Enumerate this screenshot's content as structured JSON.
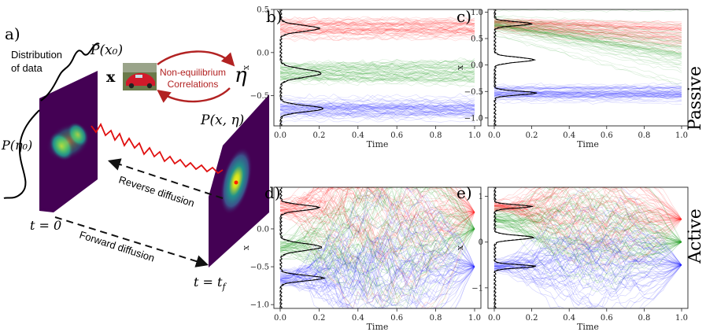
{
  "schematic": {
    "panel_label": "a)",
    "px0": "P(x₀)",
    "distribution_line1": "Distribution",
    "distribution_line2": "of data",
    "x_symbol": "x",
    "noneq_line1": "Non-equilibrium",
    "noneq_line2": "Correlations",
    "eta": "η",
    "peta0": "P(η₀)",
    "pxeta": "P(x, η)",
    "reverse": "Reverse diffusion",
    "forward": "Forward diffusion",
    "t0": "t = 0",
    "tf": "t = t",
    "tf_sub": "f",
    "colors": {
      "arrow_red": "#b22222",
      "path_red": "#e01010",
      "plane_bg": "#440154"
    }
  },
  "row_labels": {
    "top": "Passive",
    "bottom": "Active"
  },
  "chart_data": [
    {
      "id": "b",
      "panel_label": "b)",
      "type": "line",
      "xlabel": "Time",
      "ylabel": "x",
      "xlim": [
        0,
        1
      ],
      "ylim": [
        -0.85,
        0.5
      ],
      "xticks": [
        0.0,
        0.2,
        0.4,
        0.6,
        0.8,
        1.0
      ],
      "xtick_labels": [
        "0.0",
        "0.2",
        "0.4",
        "0.6",
        "0.8",
        "1.0"
      ],
      "yticks": [
        -0.5,
        0.0,
        0.5
      ],
      "ytick_labels": [
        "−0.5",
        "0.0",
        "0.5"
      ],
      "series": [
        {
          "color": "#ff2020",
          "x": [
            0,
            1
          ],
          "center": [
            0.28,
            0.28
          ],
          "spread": [
            0.06,
            0.06
          ]
        },
        {
          "color": "#1a9a1a",
          "x": [
            0,
            1
          ],
          "center": [
            -0.24,
            -0.24
          ],
          "spread": [
            0.06,
            0.08
          ]
        },
        {
          "color": "#2020ff",
          "x": [
            0,
            1
          ],
          "center": [
            -0.65,
            -0.65
          ],
          "spread": [
            0.06,
            0.06
          ]
        }
      ],
      "histogram_peaks": [
        0.28,
        -0.24,
        -0.65
      ]
    },
    {
      "id": "c",
      "panel_label": "c)",
      "type": "line",
      "xlabel": "Time",
      "ylabel": "x",
      "xlim": [
        0,
        1
      ],
      "ylim": [
        -1.15,
        1.05
      ],
      "xticks": [
        0.0,
        0.2,
        0.4,
        0.6,
        0.8,
        1.0
      ],
      "xtick_labels": [
        "0.0",
        "0.2",
        "0.4",
        "0.6",
        "0.8",
        "1.0"
      ],
      "yticks": [
        -1.0,
        -0.5,
        0.0,
        0.5,
        1.0
      ],
      "ytick_labels": [
        "−1.0",
        "−0.5",
        "0.0",
        "0.5",
        "1.0"
      ],
      "series": [
        {
          "color": "#ff2020",
          "x": [
            0,
            1
          ],
          "center": [
            0.78,
            0.6
          ],
          "spread": [
            0.06,
            0.15
          ]
        },
        {
          "color": "#1a9a1a",
          "x": [
            0,
            1
          ],
          "center": [
            0.76,
            0.2
          ],
          "spread": [
            0.08,
            0.25
          ]
        },
        {
          "color": "#2020ff",
          "x": [
            0,
            1
          ],
          "center": [
            -0.53,
            -0.53
          ],
          "spread": [
            0.07,
            0.08
          ]
        }
      ],
      "histogram_peaks": [
        0.78,
        0.1,
        -0.53
      ]
    },
    {
      "id": "d",
      "panel_label": "d)",
      "type": "line",
      "xlabel": "Time",
      "ylabel": "x",
      "xlim": [
        0,
        1
      ],
      "ylim": [
        -1.05,
        0.55
      ],
      "xticks": [
        0.0,
        0.2,
        0.4,
        0.6,
        0.8,
        1.0
      ],
      "xtick_labels": [
        "0.0",
        "0.2",
        "0.4",
        "0.6",
        "0.8",
        "1.0"
      ],
      "yticks": [
        -1.0,
        -0.5,
        0.0
      ],
      "ytick_labels": [
        "−1.0",
        "−0.5",
        "0.0"
      ],
      "series": [
        {
          "color": "#ff2020",
          "x": [
            0,
            1
          ],
          "center": [
            0.28,
            0.22
          ],
          "spread": [
            0.06,
            0.0
          ]
        },
        {
          "color": "#1a9a1a",
          "x": [
            0,
            1
          ],
          "center": [
            -0.24,
            0.0
          ],
          "spread": [
            0.06,
            0.0
          ]
        },
        {
          "color": "#2020ff",
          "x": [
            0,
            1
          ],
          "center": [
            -0.65,
            -0.5
          ],
          "spread": [
            0.06,
            0.0
          ]
        }
      ],
      "histogram_peaks": [
        0.28,
        -0.24,
        -0.65
      ]
    },
    {
      "id": "e",
      "panel_label": "e)",
      "type": "line",
      "xlabel": "Time",
      "ylabel": "x",
      "xlim": [
        0,
        1
      ],
      "ylim": [
        -1.45,
        1.2
      ],
      "xticks": [
        0.0,
        0.2,
        0.4,
        0.6,
        0.8,
        1.0
      ],
      "xtick_labels": [
        "0.0",
        "0.2",
        "0.4",
        "0.6",
        "0.8",
        "1.0"
      ],
      "yticks": [
        -1,
        0,
        1
      ],
      "ytick_labels": [
        "−1",
        "0",
        "1"
      ],
      "series": [
        {
          "color": "#ff2020",
          "x": [
            0,
            1
          ],
          "center": [
            0.78,
            0.5
          ],
          "spread": [
            0.06,
            0.0
          ]
        },
        {
          "color": "#1a9a1a",
          "x": [
            0,
            1
          ],
          "center": [
            0.5,
            0.0
          ],
          "spread": [
            0.1,
            0.0
          ]
        },
        {
          "color": "#2020ff",
          "x": [
            0,
            1
          ],
          "center": [
            -0.53,
            -0.5
          ],
          "spread": [
            0.07,
            0.0
          ]
        }
      ],
      "histogram_peaks": [
        0.78,
        0.1,
        -0.53
      ]
    }
  ]
}
